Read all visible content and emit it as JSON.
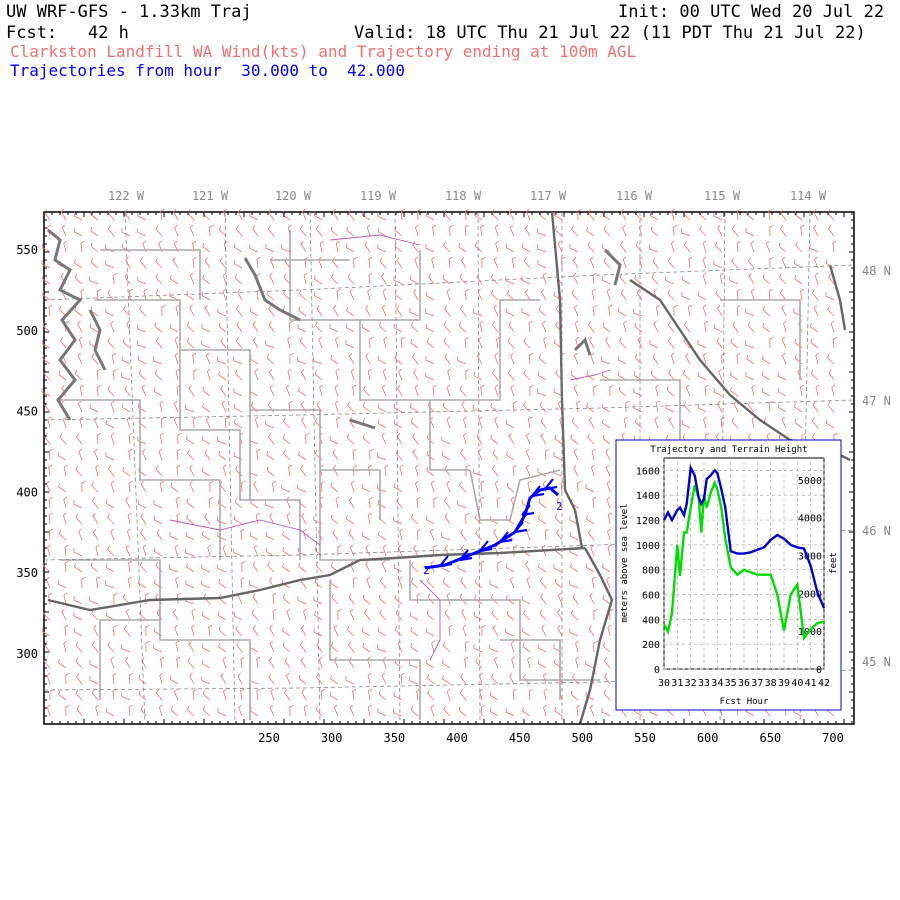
{
  "header": {
    "title": "UW WRF-GFS - 1.33km Traj",
    "init": "Init: 00 UTC Wed 20 Jul 22",
    "fcst": "Fcst:   42 h",
    "valid": "Valid: 18 UTC Thu 21 Jul 22 (11 PDT Thu 21 Jul 22)",
    "subtitle": "Clarkston Landfill WA Wind(kts) and Trajectory ending at 100m AGL",
    "traj_range": "Trajectories from hour  30.000 to  42.000"
  },
  "colors": {
    "wind_barbs": "#f07070",
    "trajectory": "#0000ff",
    "terrain_line": "#00dd00",
    "height_line": "#0000cc",
    "coast": "#777777",
    "state_border": "#666666",
    "county_border": "#aaaaaa",
    "lat_lon_grid": "#888888",
    "water": "#bb55bb"
  },
  "map": {
    "x_ticks": [
      "250",
      "300",
      "350",
      "400",
      "450",
      "500",
      "550",
      "600",
      "650",
      "700"
    ],
    "y_ticks": [
      "550",
      "500",
      "450",
      "400",
      "350",
      "300"
    ],
    "lon_labels": [
      "122 W",
      "121 W",
      "120 W",
      "119 W",
      "118 W",
      "117 W",
      "116 W",
      "115 W",
      "114 W"
    ],
    "lat_labels": [
      "48 N",
      "47 N",
      "46 N",
      "45 N"
    ],
    "trajectory_marker": "2"
  },
  "inset": {
    "title": "Trajectory and Terrain Height",
    "ylabel_left": "meters above sea level",
    "ylabel_right": "feet",
    "xlabel": "Fcst Hour",
    "x_ticks": [
      "30",
      "31",
      "32",
      "33",
      "34",
      "35",
      "36",
      "37",
      "38",
      "39",
      "40",
      "41",
      "42"
    ],
    "y_ticks_m": [
      "0",
      "200",
      "400",
      "600",
      "800",
      "1000",
      "1200",
      "1400",
      "1600"
    ],
    "y_ticks_ft": [
      "0",
      "1000",
      "2000",
      "3000",
      "4000",
      "5000"
    ]
  },
  "chart_data": {
    "type": "line",
    "title": "Trajectory and Terrain Height",
    "xlabel": "Fcst Hour",
    "ylabel": "meters above sea level",
    "xlim": [
      30,
      42
    ],
    "ylim": [
      0,
      1700
    ],
    "x": [
      30,
      30.3,
      30.6,
      31,
      31.2,
      31.5,
      31.7,
      32,
      32.3,
      32.6,
      32.8,
      33,
      33.2,
      33.5,
      33.8,
      34,
      34.3,
      34.6,
      35,
      35.5,
      36,
      36.5,
      37,
      37.5,
      38,
      38.5,
      39,
      39.5,
      40,
      40.5,
      41,
      41.5,
      42
    ],
    "series": [
      {
        "name": "",
        "color": "#0000cc",
        "values": [
          1200,
          1260,
          1200,
          1280,
          1300,
          1240,
          1330,
          1620,
          1560,
          1380,
          1330,
          1370,
          1530,
          1560,
          1600,
          1580,
          1450,
          1300,
          950,
          930,
          930,
          940,
          960,
          980,
          1040,
          1080,
          1050,
          1000,
          980,
          970,
          830,
          620,
          490
        ]
      },
      {
        "name": "",
        "color": "#00dd00",
        "values": [
          360,
          300,
          450,
          1000,
          750,
          1100,
          1100,
          1300,
          1480,
          1380,
          1100,
          1400,
          1300,
          1420,
          1500,
          1450,
          1300,
          1050,
          820,
          760,
          800,
          780,
          760,
          760,
          760,
          600,
          310,
          600,
          680,
          250,
          320,
          370,
          380
        ]
      }
    ]
  }
}
